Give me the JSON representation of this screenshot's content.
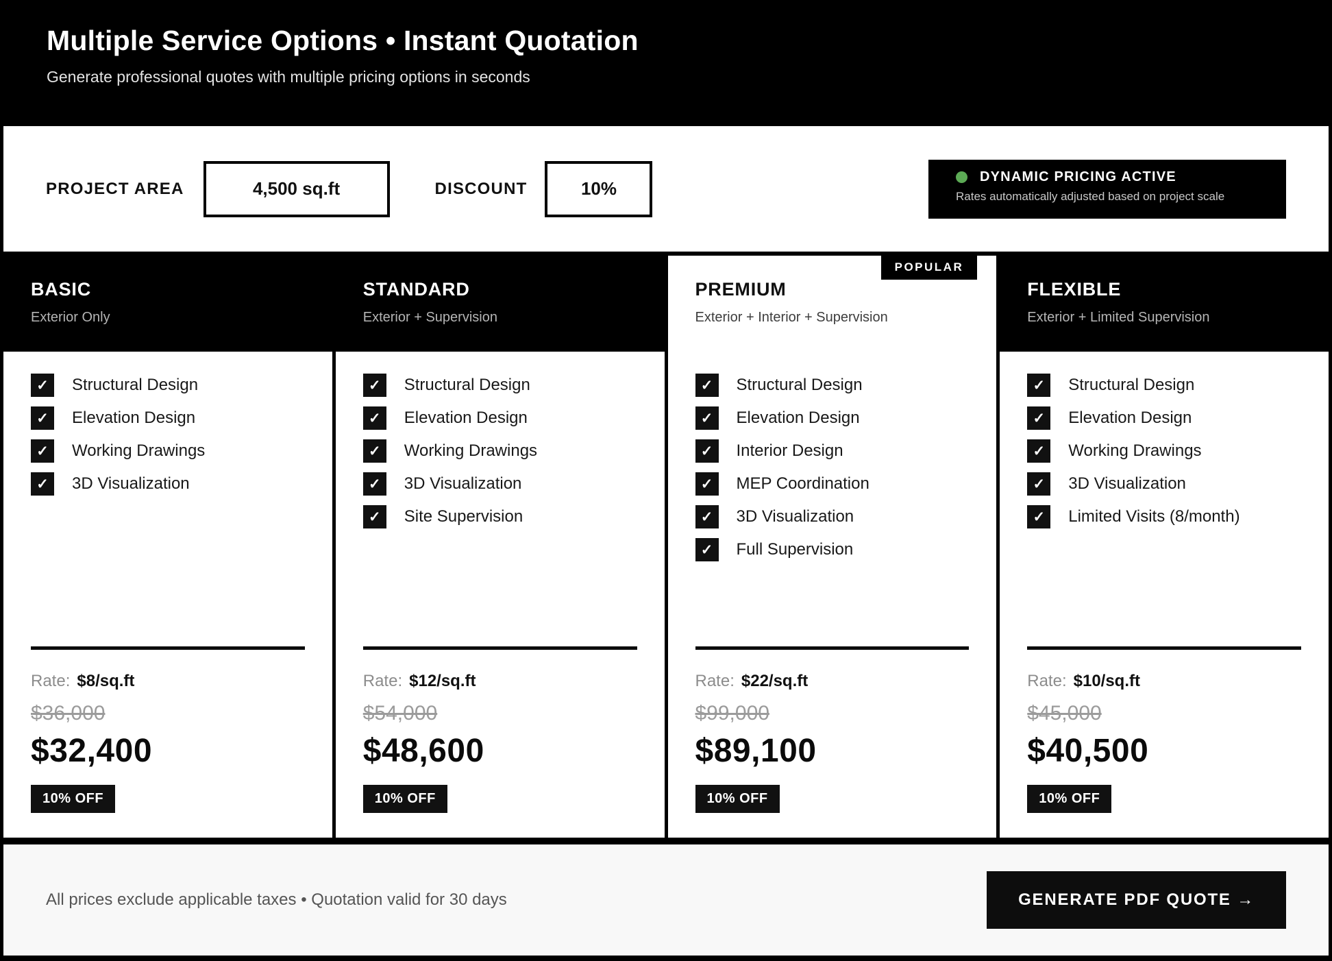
{
  "header": {
    "title": "Multiple Service Options • Instant Quotation",
    "subtitle": "Generate professional quotes with multiple pricing options in seconds"
  },
  "controls": {
    "project_area_label": "PROJECT AREA",
    "project_area_value": "4,500 sq.ft",
    "discount_label": "DISCOUNT",
    "discount_value": "10%",
    "dynamic_badge": {
      "title": "DYNAMIC PRICING ACTIVE",
      "subtitle": "Rates automatically adjusted based on project scale",
      "dot_color": "#5caa55"
    }
  },
  "popular_badge_label": "POPULAR",
  "icons": {
    "check": "✓"
  },
  "plans": [
    {
      "name": "BASIC",
      "subtitle": "Exterior Only",
      "features": [
        "Structural Design",
        "Elevation Design",
        "Working Drawings",
        "3D Visualization"
      ],
      "rate_label": "Rate:",
      "rate": "$8/sq.ft",
      "original_price": "$36,000",
      "price": "$32,400",
      "discount_badge": "10% OFF"
    },
    {
      "name": "STANDARD",
      "subtitle": "Exterior + Supervision",
      "features": [
        "Structural Design",
        "Elevation Design",
        "Working Drawings",
        "3D Visualization",
        "Site Supervision"
      ],
      "rate_label": "Rate:",
      "rate": "$12/sq.ft",
      "original_price": "$54,000",
      "price": "$48,600",
      "discount_badge": "10% OFF"
    },
    {
      "name": "PREMIUM",
      "subtitle": "Exterior + Interior + Supervision",
      "features": [
        "Structural Design",
        "Elevation Design",
        "Interior Design",
        "MEP Coordination",
        "3D Visualization",
        "Full Supervision"
      ],
      "rate_label": "Rate:",
      "rate": "$22/sq.ft",
      "original_price": "$99,000",
      "price": "$89,100",
      "discount_badge": "10% OFF"
    },
    {
      "name": "FLEXIBLE",
      "subtitle": "Exterior + Limited Supervision",
      "features": [
        "Structural Design",
        "Elevation Design",
        "Working Drawings",
        "3D Visualization",
        "Limited Visits (8/month)"
      ],
      "rate_label": "Rate:",
      "rate": "$10/sq.ft",
      "original_price": "$45,000",
      "price": "$40,500",
      "discount_badge": "10% OFF"
    }
  ],
  "footer": {
    "note": "All prices exclude applicable taxes • Quotation valid for 30 days",
    "button_label": "GENERATE PDF QUOTE →"
  }
}
